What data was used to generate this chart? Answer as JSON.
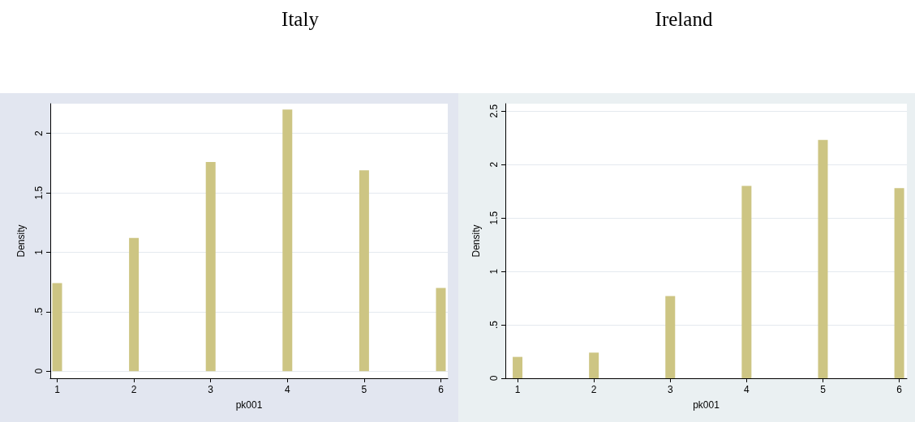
{
  "chart_data": [
    {
      "type": "bar",
      "title": "Italy",
      "xlabel": "pk001",
      "ylabel": "Density",
      "color": "#cdc583",
      "x": [
        1,
        2,
        3,
        4,
        5,
        6
      ],
      "values": [
        0.74,
        1.12,
        1.76,
        2.2,
        1.69,
        0.7
      ],
      "xlim": [
        0.91,
        6.09
      ],
      "xticks": [
        1,
        2,
        3,
        4,
        5,
        6
      ],
      "ylim": [
        -0.06,
        2.25
      ],
      "yticks": [
        0,
        {
          "value": 0.5,
          "label": ".5"
        },
        1,
        1.5,
        2
      ],
      "grid": "y"
    },
    {
      "type": "bar",
      "title": "Ireland",
      "xlabel": "pk001",
      "ylabel": "Density",
      "color": "#cdc583",
      "x": [
        1,
        2,
        3,
        4,
        5,
        6
      ],
      "values": [
        0.2,
        0.24,
        0.77,
        1.8,
        2.23,
        1.78
      ],
      "xlim": [
        0.84,
        6.1
      ],
      "xticks": [
        1,
        2,
        3,
        4,
        5,
        6
      ],
      "ylim": [
        0,
        2.57
      ],
      "yticks": [
        0,
        {
          "value": 0.5,
          "label": ".5"
        },
        1,
        1.5,
        2,
        2.5
      ],
      "grid": "y"
    }
  ]
}
